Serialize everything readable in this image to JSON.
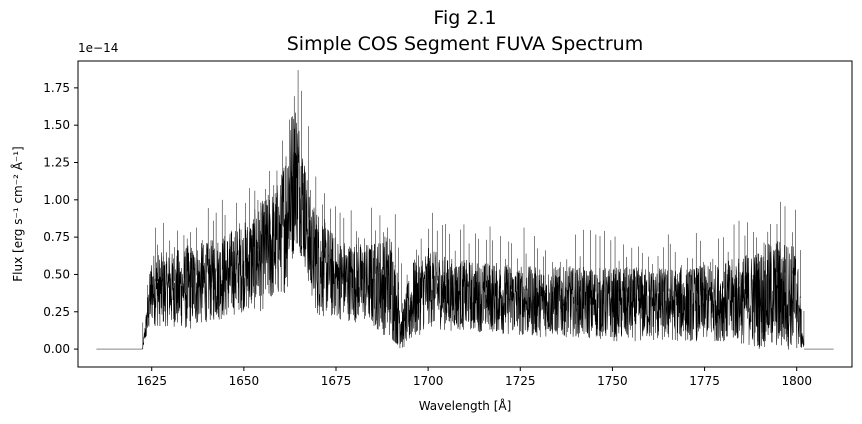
{
  "chart_data": {
    "type": "line",
    "title_line1": "Fig 2.1",
    "title_line2": "Simple COS Segment FUVA Spectrum",
    "xlabel": "Wavelength [Å]",
    "ylabel": "Flux [erg s⁻¹ cm⁻² Å⁻¹]",
    "y_offset_label": "1e−14",
    "xlim": [
      1605,
      1815
    ],
    "ylim": [
      -0.12,
      1.93
    ],
    "x_ticks": [
      1625,
      1650,
      1675,
      1700,
      1725,
      1750,
      1775,
      1800
    ],
    "y_ticks": [
      0.0,
      0.25,
      0.5,
      0.75,
      1.0,
      1.25,
      1.5,
      1.75
    ],
    "y_tick_labels": [
      "0.00",
      "0.25",
      "0.50",
      "0.75",
      "1.00",
      "1.25",
      "1.50",
      "1.75"
    ],
    "grid": false,
    "series": [
      {
        "color": "#000000",
        "x": [
          1610,
          1622.5,
          1625,
          1630,
          1635,
          1640,
          1645,
          1650,
          1655,
          1660,
          1662,
          1664,
          1666,
          1668,
          1670,
          1675,
          1680,
          1685,
          1690,
          1693,
          1696,
          1700,
          1705,
          1710,
          1720,
          1730,
          1740,
          1750,
          1760,
          1770,
          1780,
          1790,
          1795,
          1800,
          1802,
          1810
        ],
        "y": [
          0.0,
          0.0,
          0.38,
          0.38,
          0.38,
          0.42,
          0.45,
          0.48,
          0.55,
          0.7,
          1.05,
          1.3,
          1.1,
          0.7,
          0.55,
          0.45,
          0.42,
          0.4,
          0.35,
          0.08,
          0.3,
          0.38,
          0.34,
          0.33,
          0.3,
          0.28,
          0.27,
          0.25,
          0.26,
          0.27,
          0.27,
          0.3,
          0.3,
          0.35,
          0.0,
          0.0
        ],
        "y_low": [
          0.0,
          0.0,
          0.15,
          0.15,
          0.12,
          0.18,
          0.2,
          0.25,
          0.25,
          0.35,
          0.4,
          0.7,
          0.6,
          0.35,
          0.22,
          0.2,
          0.18,
          0.15,
          0.05,
          -0.01,
          0.05,
          0.15,
          0.12,
          0.12,
          0.1,
          0.08,
          0.08,
          0.05,
          0.05,
          0.05,
          0.05,
          0.0,
          -0.01,
          -0.01,
          0.0,
          0.0
        ],
        "y_high": [
          0.0,
          0.0,
          0.65,
          0.65,
          0.7,
          0.72,
          0.78,
          0.85,
          1.0,
          1.15,
          1.55,
          1.7,
          1.4,
          1.0,
          0.95,
          0.75,
          0.72,
          0.72,
          0.8,
          0.3,
          0.6,
          0.68,
          0.62,
          0.6,
          0.58,
          0.55,
          0.55,
          0.55,
          0.55,
          0.55,
          0.58,
          0.68,
          0.75,
          0.7,
          0.0,
          0.0
        ]
      }
    ]
  }
}
